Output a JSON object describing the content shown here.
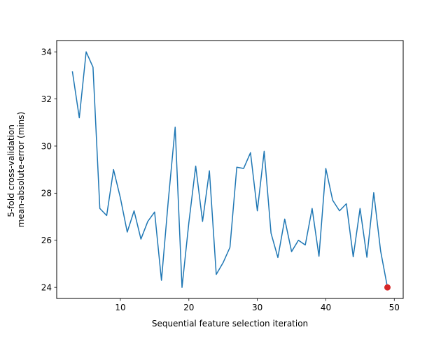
{
  "chart_data": {
    "type": "line",
    "title": "",
    "xlabel": "Sequential feature selection iteration",
    "ylabel_line1": "5-fold cross-validation",
    "ylabel_line2": "mean-absolute-error (mins)",
    "xlim": [
      0.7,
      51.3
    ],
    "ylim": [
      23.53,
      34.48
    ],
    "x_ticks": [
      10,
      20,
      30,
      40,
      50
    ],
    "x_tick_labels": [
      "10",
      "20",
      "30",
      "40",
      "50"
    ],
    "y_ticks": [
      24,
      26,
      28,
      30,
      32,
      34
    ],
    "y_tick_labels": [
      "24",
      "26",
      "28",
      "30",
      "32",
      "34"
    ],
    "grid": false,
    "legend": "none",
    "series": [
      {
        "color": "#1f77b4",
        "x": [
          3,
          4,
          5,
          6,
          7,
          8,
          9,
          10,
          11,
          12,
          13,
          14,
          15,
          16,
          17,
          18,
          19,
          20,
          21,
          22,
          23,
          24,
          25,
          26,
          27,
          28,
          29,
          30,
          31,
          32,
          33,
          34,
          35,
          36,
          37,
          38,
          39,
          40,
          41,
          42,
          43,
          44,
          45,
          46,
          47,
          48,
          49
        ],
        "values": [
          33.15,
          31.2,
          34.0,
          33.35,
          27.35,
          27.05,
          29.0,
          27.8,
          26.35,
          27.25,
          26.05,
          26.8,
          27.2,
          24.3,
          27.7,
          30.8,
          24.0,
          26.75,
          29.15,
          26.8,
          28.95,
          24.55,
          25.05,
          25.7,
          29.1,
          29.05,
          29.72,
          27.25,
          29.78,
          26.3,
          25.27,
          26.9,
          25.52,
          26.0,
          25.8,
          27.35,
          25.32,
          29.05,
          27.7,
          27.25,
          27.55,
          25.3,
          27.35,
          25.28,
          28.02,
          25.55,
          24.0
        ]
      }
    ],
    "highlight_point": {
      "x": 49,
      "y": 24.0,
      "color": "#d62728"
    }
  }
}
